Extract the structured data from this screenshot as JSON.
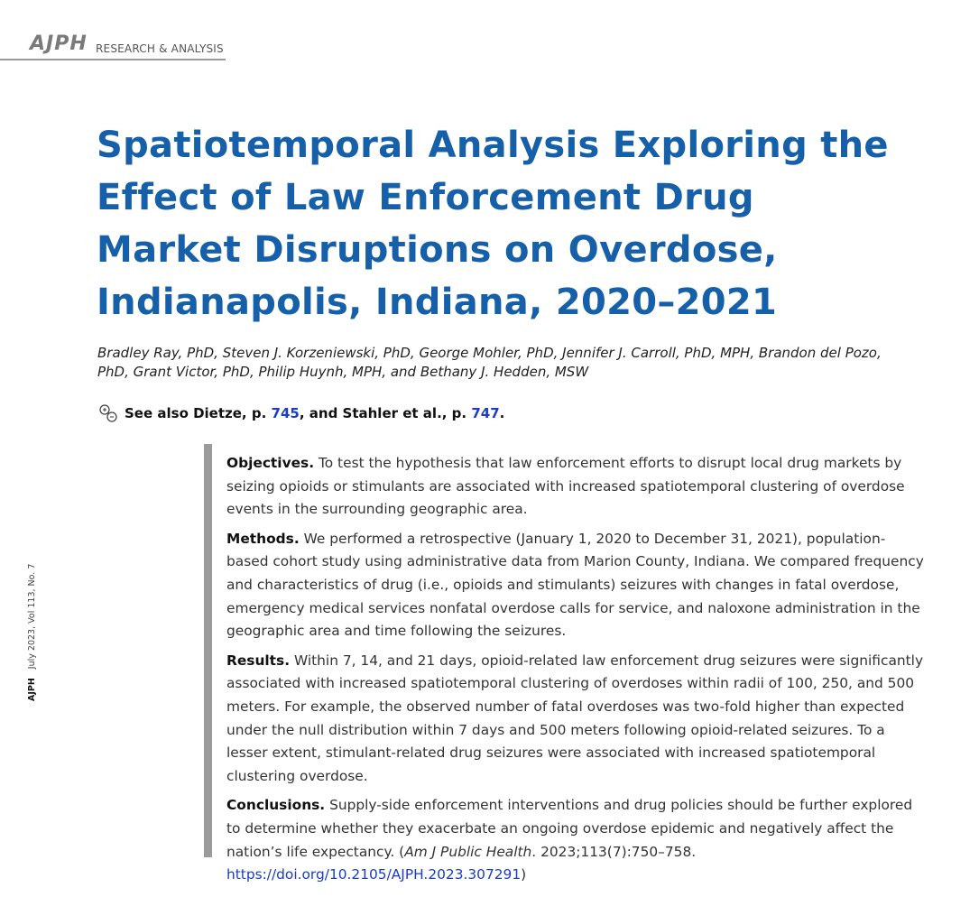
{
  "header": {
    "logo": "AJPH",
    "section": "RESEARCH & ANALYSIS"
  },
  "side_text": {
    "journal": "AJPH",
    "issue": "July 2023, Vol 113, No. 7"
  },
  "title": "Spatiotemporal Analysis Exploring the Effect of Law Enforcement Drug Market Disruptions on Overdose, Indianapolis, Indiana, 2020–2021",
  "authors": "Bradley Ray, PhD, Steven J. Korzeniewski, PhD, George Mohler, PhD, Jennifer J. Carroll, PhD, MPH, Brandon del Pozo, PhD, Grant Victor, PhD, Philip Huynh, MPH, and Bethany J. Hedden, MSW",
  "see_also": {
    "prefix": "See also Dietze, p.",
    "page1": "745",
    "middle": ", and Stahler et al., p.",
    "page2": "747",
    "suffix": "."
  },
  "abstract": {
    "objectives_label": "Objectives.",
    "objectives_text": "To test the hypothesis that law enforcement efforts to disrupt local drug markets by seizing opioids or stimulants are associated with increased spatiotemporal clustering of overdose events in the surrounding geographic area.",
    "methods_label": "Methods.",
    "methods_text": "We performed a retrospective (January 1, 2020 to December 31, 2021), population-based cohort study using administrative data from Marion County, Indiana. We compared frequency and characteristics of drug (i.e., opioids and stimulants) seizures with changes in fatal overdose, emergency medical services nonfatal overdose calls for service, and naloxone administration in the geographic area and time following the seizures.",
    "results_label": "Results.",
    "results_text": "Within 7, 14, and 21 days, opioid-related law enforcement drug seizures were significantly associated with increased spatiotemporal clustering of overdoses within radii of 100, 250, and 500 meters. For example, the observed number of fatal overdoses was two-fold higher than expected under the null distribution within 7 days and 500 meters following opioid-related seizures. To a lesser extent, stimulant-related drug seizures were associated with increased spatiotemporal clustering overdose.",
    "conclusions_label": "Conclusions.",
    "conclusions_text": "Supply-side enforcement interventions and drug policies should be further explored to determine whether they exacerbate an ongoing overdose epidemic and negatively affect the nation’s life expectancy. (",
    "citation_journal": "Am J Public Health",
    "citation_details": ". 2023;113(7):750–758.",
    "doi": "https://doi.org/10.2105/AJPH.2023.307291",
    "citation_end": ")"
  },
  "colors": {
    "title": "#1560a8",
    "link": "#1a3cc7",
    "abstract_bar": "#9b9b9b"
  },
  "icons": {
    "see_also": "linked-articles-icon"
  }
}
